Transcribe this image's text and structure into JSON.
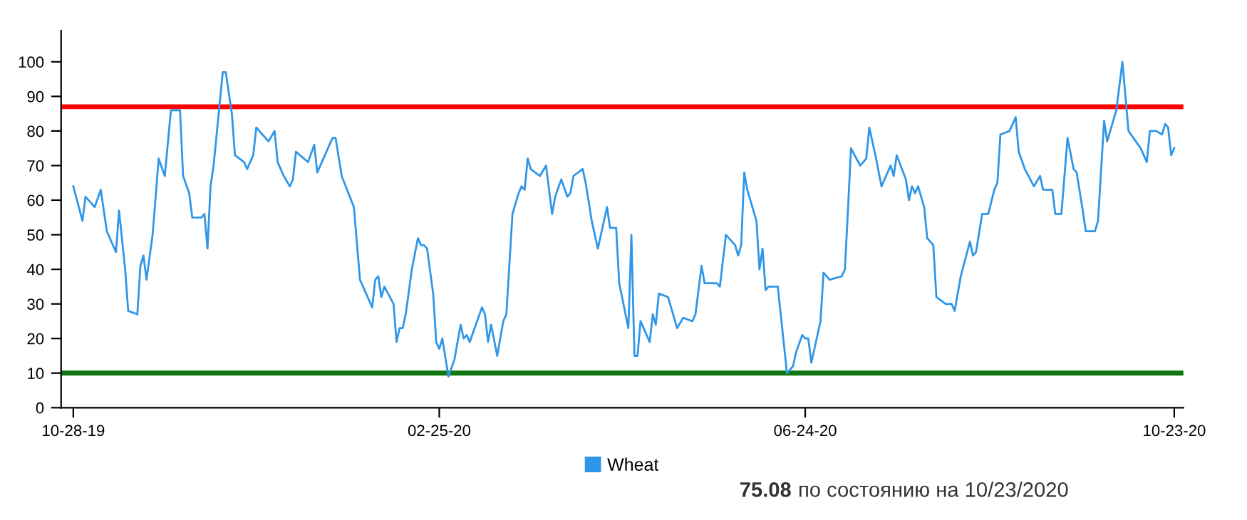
{
  "chart_data": {
    "type": "line",
    "xlim": [
      "2019-10-24",
      "2020-10-26"
    ],
    "ylim": [
      0,
      109
    ],
    "yticks": [
      0,
      10,
      20,
      30,
      40,
      50,
      60,
      70,
      80,
      90,
      100
    ],
    "xticks": [
      {
        "value": "2019-10-28",
        "label": "10-28-19"
      },
      {
        "value": "2020-02-25",
        "label": "02-25-20"
      },
      {
        "value": "2020-06-24",
        "label": "06-24-20"
      },
      {
        "value": "2020-10-23",
        "label": "10-23-20"
      }
    ],
    "grid": false,
    "legend": "bottom",
    "marker": "none",
    "line_style": "solid",
    "ref_lines": [
      {
        "axis": "y",
        "value": 87,
        "label": null,
        "color": "#ff0000"
      },
      {
        "axis": "y",
        "value": 10,
        "label": null,
        "color": "#117711"
      }
    ],
    "annotations": [
      "75.08 по состоянию на 10/23/2020"
    ],
    "series": [
      {
        "name": "Wheat",
        "color": "#2f96e8",
        "x": [
          "2019-10-28",
          "2019-10-31",
          "2019-11-01",
          "2019-11-04",
          "2019-11-06",
          "2019-11-08",
          "2019-11-11",
          "2019-11-12",
          "2019-11-14",
          "2019-11-15",
          "2019-11-18",
          "2019-11-19",
          "2019-11-20",
          "2019-11-21",
          "2019-11-23",
          "2019-11-25",
          "2019-11-27",
          "2019-11-29",
          "2019-12-02",
          "2019-12-03",
          "2019-12-05",
          "2019-12-06",
          "2019-12-09",
          "2019-12-10",
          "2019-12-11",
          "2019-12-12",
          "2019-12-13",
          "2019-12-15",
          "2019-12-16",
          "2019-12-17",
          "2019-12-19",
          "2019-12-20",
          "2019-12-23",
          "2019-12-24",
          "2019-12-26",
          "2019-12-27",
          "2019-12-29",
          "2019-12-31",
          "2020-01-02",
          "2020-01-03",
          "2020-01-05",
          "2020-01-07",
          "2020-01-08",
          "2020-01-09",
          "2020-01-13",
          "2020-01-15",
          "2020-01-16",
          "2020-01-21",
          "2020-01-22",
          "2020-01-24",
          "2020-01-28",
          "2020-01-30",
          "2020-02-03",
          "2020-02-04",
          "2020-02-05",
          "2020-02-06",
          "2020-02-07",
          "2020-02-10",
          "2020-02-11",
          "2020-02-12",
          "2020-02-13",
          "2020-02-14",
          "2020-02-16",
          "2020-02-18",
          "2020-02-19",
          "2020-02-20",
          "2020-02-21",
          "2020-02-23",
          "2020-02-24",
          "2020-02-25",
          "2020-02-26",
          "2020-02-28",
          "2020-03-01",
          "2020-03-03",
          "2020-03-04",
          "2020-03-05",
          "2020-03-06",
          "2020-03-08",
          "2020-03-10",
          "2020-03-11",
          "2020-03-12",
          "2020-03-13",
          "2020-03-15",
          "2020-03-17",
          "2020-03-18",
          "2020-03-20",
          "2020-03-22",
          "2020-03-23",
          "2020-03-24",
          "2020-03-25",
          "2020-03-26",
          "2020-03-29",
          "2020-03-31",
          "2020-04-02",
          "2020-04-03",
          "2020-04-05",
          "2020-04-07",
          "2020-04-08",
          "2020-04-09",
          "2020-04-12",
          "2020-04-13",
          "2020-04-15",
          "2020-04-17",
          "2020-04-20",
          "2020-04-21",
          "2020-04-23",
          "2020-04-24",
          "2020-04-27",
          "2020-04-28",
          "2020-04-29",
          "2020-04-30",
          "2020-05-01",
          "2020-05-04",
          "2020-05-05",
          "2020-05-06",
          "2020-05-07",
          "2020-05-10",
          "2020-05-13",
          "2020-05-15",
          "2020-05-18",
          "2020-05-19",
          "2020-05-21",
          "2020-05-22",
          "2020-05-26",
          "2020-05-27",
          "2020-05-29",
          "2020-06-01",
          "2020-06-02",
          "2020-06-03",
          "2020-06-04",
          "2020-06-05",
          "2020-06-08",
          "2020-06-09",
          "2020-06-10",
          "2020-06-11",
          "2020-06-12",
          "2020-06-15",
          "2020-06-18",
          "2020-06-20",
          "2020-06-21",
          "2020-06-23",
          "2020-06-24",
          "2020-06-25",
          "2020-06-26",
          "2020-06-29",
          "2020-06-30",
          "2020-07-02",
          "2020-07-06",
          "2020-07-07",
          "2020-07-08",
          "2020-07-09",
          "2020-07-12",
          "2020-07-14",
          "2020-07-15",
          "2020-07-17",
          "2020-07-19",
          "2020-07-22",
          "2020-07-23",
          "2020-07-24",
          "2020-07-27",
          "2020-07-28",
          "2020-07-29",
          "2020-07-30",
          "2020-07-31",
          "2020-08-02",
          "2020-08-03",
          "2020-08-05",
          "2020-08-06",
          "2020-08-09",
          "2020-08-11",
          "2020-08-12",
          "2020-08-14",
          "2020-08-17",
          "2020-08-18",
          "2020-08-19",
          "2020-08-21",
          "2020-08-23",
          "2020-08-25",
          "2020-08-26",
          "2020-08-27",
          "2020-08-30",
          "2020-09-01",
          "2020-09-02",
          "2020-09-04",
          "2020-09-07",
          "2020-09-09",
          "2020-09-10",
          "2020-09-13",
          "2020-09-14",
          "2020-09-16",
          "2020-09-18",
          "2020-09-20",
          "2020-09-21",
          "2020-09-23",
          "2020-09-24",
          "2020-09-27",
          "2020-09-28",
          "2020-09-30",
          "2020-10-01",
          "2020-10-04",
          "2020-10-06",
          "2020-10-08",
          "2020-10-12",
          "2020-10-14",
          "2020-10-15",
          "2020-10-17",
          "2020-10-19",
          "2020-10-20",
          "2020-10-21",
          "2020-10-22",
          "2020-10-23"
        ],
        "values": [
          64,
          54,
          61,
          58,
          63,
          51,
          45,
          57,
          40,
          28,
          27,
          41,
          44,
          37,
          50,
          72,
          67,
          86,
          86,
          67,
          62,
          55,
          55,
          56,
          46,
          64,
          70,
          88,
          97,
          97,
          85,
          73,
          71,
          69,
          73,
          81,
          79,
          77,
          80,
          71,
          67,
          64,
          66,
          74,
          71,
          76,
          68,
          78,
          78,
          67,
          58,
          37,
          29,
          37,
          38,
          32,
          35,
          30,
          19,
          23,
          23,
          27,
          40,
          49,
          47,
          47,
          46,
          33,
          19,
          17,
          20,
          9,
          14,
          24,
          20,
          21,
          19,
          24,
          29,
          27,
          19,
          24,
          15,
          25,
          27,
          56,
          62,
          64,
          63,
          72,
          69,
          67,
          70,
          56,
          61,
          66,
          61,
          62,
          67,
          69,
          65,
          54,
          46,
          58,
          52,
          52,
          36,
          23,
          50,
          15,
          15,
          25,
          19,
          27,
          24,
          33,
          32,
          23,
          26,
          25,
          27,
          41,
          36,
          36,
          35,
          50,
          47,
          44,
          47,
          68,
          63,
          54,
          40,
          46,
          34,
          35,
          35,
          10,
          12,
          16,
          21,
          20,
          20,
          13,
          25,
          39,
          37,
          38,
          40,
          57,
          75,
          70,
          72,
          81,
          73,
          64,
          70,
          67,
          73,
          66,
          60,
          64,
          62,
          64,
          58,
          49,
          47,
          32,
          30,
          30,
          28,
          38,
          48,
          44,
          45,
          56,
          56,
          63,
          65,
          79,
          80,
          84,
          74,
          69,
          64,
          67,
          63,
          63,
          56,
          56,
          78,
          69,
          68,
          57,
          51,
          51,
          54,
          83,
          77,
          86,
          100,
          80,
          75,
          71,
          80,
          80,
          79,
          82,
          81,
          73,
          75.08
        ]
      }
    ]
  }
}
